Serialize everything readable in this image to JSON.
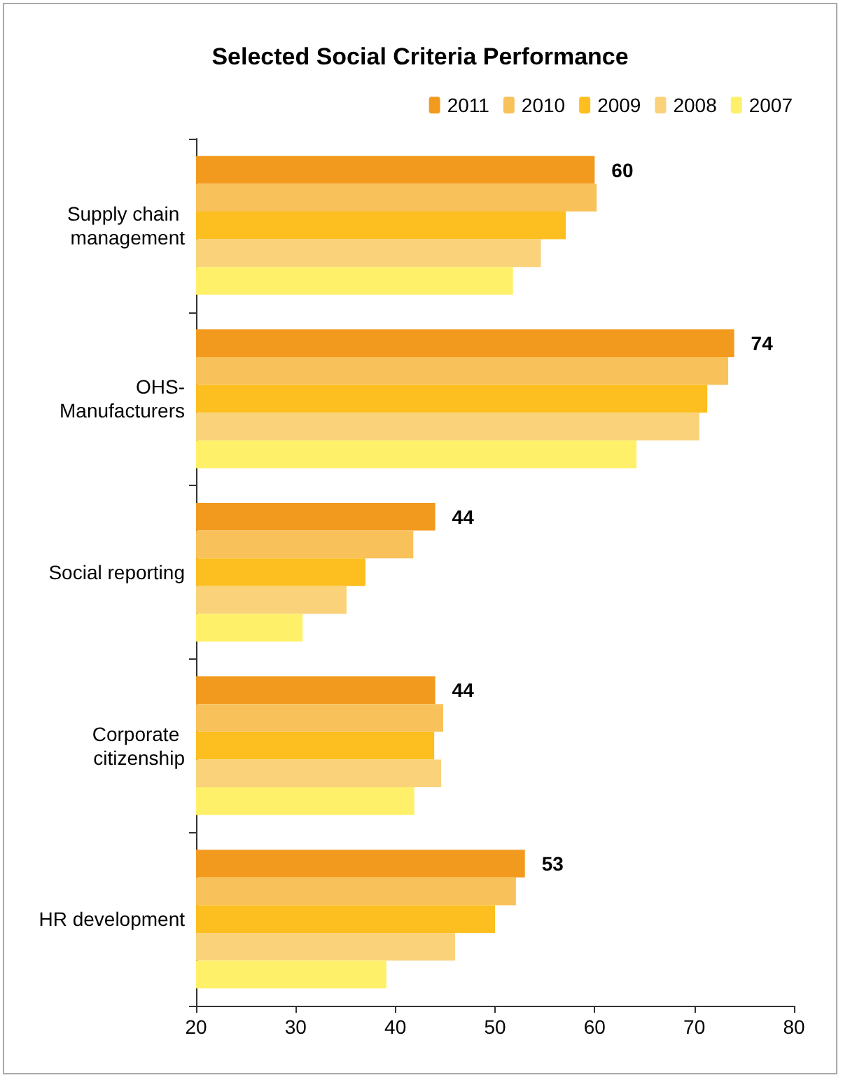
{
  "chart_data": {
    "type": "bar",
    "orientation": "horizontal",
    "title": "Selected Social Criteria Performance",
    "categories": [
      "Supply chain management",
      "OHS-Manufacturers",
      "Social reporting",
      "Corporate citizenship",
      "HR development"
    ],
    "series": [
      {
        "name": "2011",
        "color": "#f29a1e",
        "values": [
          60,
          74,
          44,
          44,
          53
        ],
        "value_labels": [
          "60",
          "74",
          "44",
          "44",
          "53"
        ]
      },
      {
        "name": "2010",
        "color": "#f9c15a",
        "values": [
          60.2,
          73.4,
          41.8,
          44.8,
          52.1
        ]
      },
      {
        "name": "2009",
        "color": "#fdbf1f",
        "values": [
          57.1,
          71.3,
          37.0,
          43.9,
          50.0
        ]
      },
      {
        "name": "2008",
        "color": "#f9d27a",
        "values": [
          54.6,
          70.5,
          35.1,
          44.6,
          46.0
        ]
      },
      {
        "name": "2007",
        "color": "#fff06a",
        "values": [
          51.8,
          64.2,
          30.7,
          41.9,
          39.1
        ]
      }
    ],
    "xlim": [
      20,
      80
    ],
    "xticks": [
      20,
      30,
      40,
      50,
      60,
      70,
      80
    ],
    "grid": false,
    "legend": "top right"
  }
}
